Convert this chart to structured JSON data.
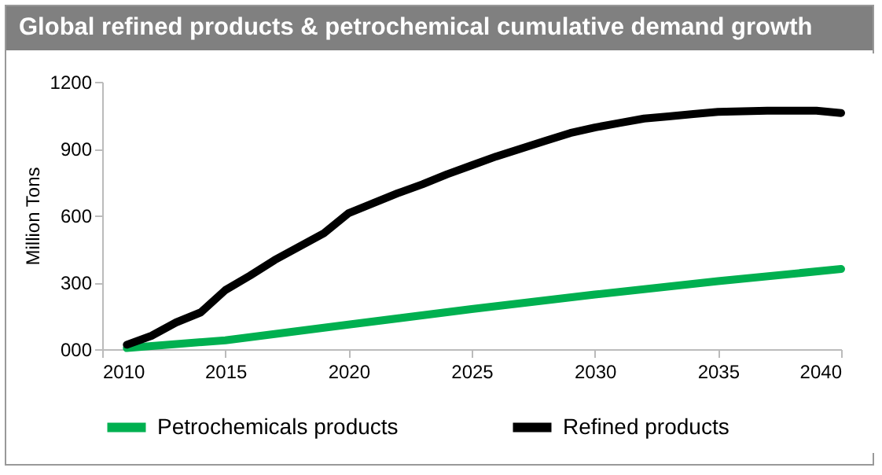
{
  "chart_data": {
    "type": "line",
    "title": "Global refined products & petrochemical cumulative demand growth",
    "ylabel": "Million Tons",
    "x": [
      2011,
      2012,
      2013,
      2014,
      2015,
      2016,
      2017,
      2018,
      2019,
      2020,
      2021,
      2022,
      2023,
      2024,
      2025,
      2026,
      2027,
      2028,
      2029,
      2030,
      2031,
      2032,
      2033,
      2034,
      2035,
      2036,
      2037,
      2038,
      2039,
      2040
    ],
    "series": [
      {
        "name": "Petrochemicals products",
        "color": "#00b050",
        "x": [
          2011,
          2015,
          2020,
          2025,
          2030,
          2035,
          2040
        ],
        "values": [
          5,
          40,
          110,
          180,
          245,
          305,
          360
        ]
      },
      {
        "name": "Refined products",
        "color": "#000000",
        "values": [
          20,
          60,
          120,
          165,
          265,
          330,
          400,
          460,
          520,
          610,
          655,
          700,
          740,
          785,
          825,
          865,
          900,
          935,
          970,
          995,
          1015,
          1035,
          1045,
          1055,
          1065,
          1068,
          1070,
          1070,
          1070,
          1060
        ]
      }
    ],
    "xlim": [
      2010,
      2040
    ],
    "xticks": [
      2010,
      2015,
      2020,
      2025,
      2030,
      2035,
      2040
    ],
    "ylim": [
      0,
      1200
    ],
    "yticks": [
      {
        "value": 0,
        "label": "000"
      },
      300,
      600,
      900,
      1200
    ],
    "grid": false,
    "legend": "bottom",
    "marker": "none",
    "line_style": "solid"
  }
}
